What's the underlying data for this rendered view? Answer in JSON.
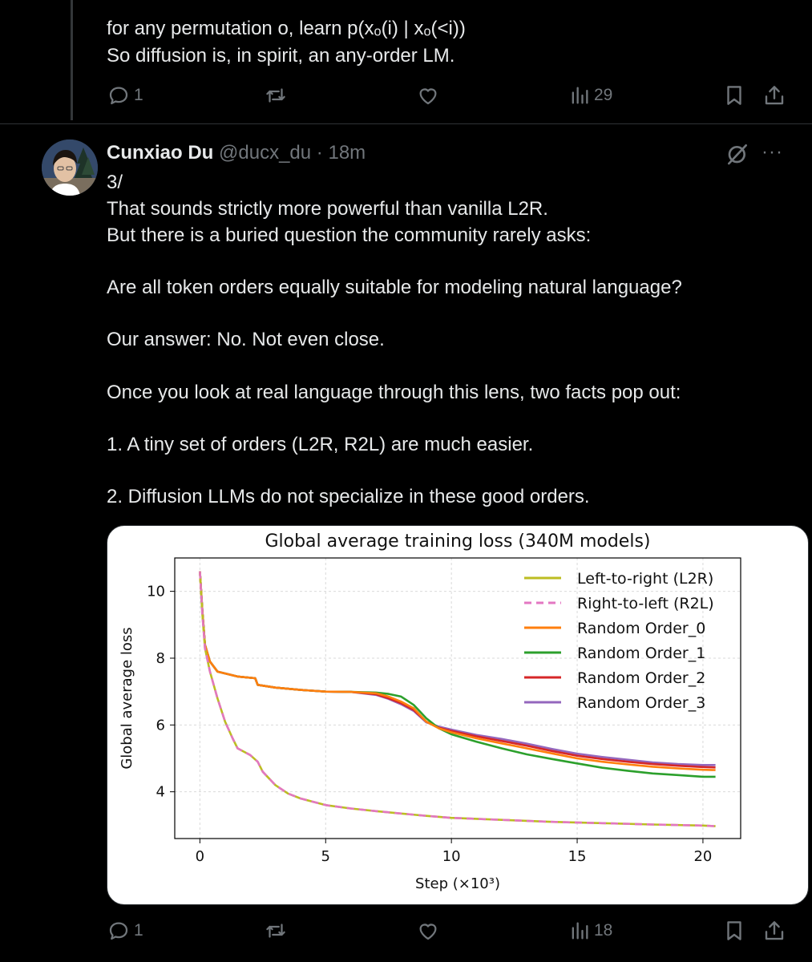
{
  "prev_tweet": {
    "lines": [
      "for any permutation o, learn p(xₒ(i) | xₒ(<i))",
      "So diffusion is, in spirit, an any-order LM."
    ],
    "actions": {
      "replies": "1",
      "views": "29"
    }
  },
  "tweet": {
    "author": {
      "name": "Cunxiao Du",
      "handle": "@ducx_du",
      "time": "18m"
    },
    "header_separator": "·",
    "more_label": "···",
    "lines": [
      "3/",
      "That sounds strictly more powerful than vanilla L2R.",
      "But there is a buried question the community rarely asks:",
      "Are all token orders equally suitable for modeling natural language?",
      "Our answer: No. Not even close.",
      "Once you look at real language through this lens, two facts pop out:",
      "1. A tiny set of orders (L2R, R2L) are much easier.",
      "2. Diffusion LLMs do not specialize in these good orders."
    ],
    "actions": {
      "replies": "1",
      "views": "18"
    }
  },
  "icons": {
    "reply": "reply-icon",
    "repost": "repost-icon",
    "like": "like-icon",
    "views": "views-icon",
    "bookmark": "bookmark-icon",
    "share": "share-icon",
    "grok": "grok-icon",
    "more": "more-icon"
  },
  "colors": {
    "background": "#000000",
    "text": "#e7e9ea",
    "muted": "#71767b",
    "divider": "#2f3336"
  },
  "chart_data": {
    "type": "line",
    "title": "Global average training loss (340M models)",
    "xlabel": "Step (×10³)",
    "ylabel": "Global average loss",
    "xlim": [
      -1,
      21.5
    ],
    "ylim": [
      2.6,
      11
    ],
    "xticks": [
      0,
      5,
      10,
      15,
      20
    ],
    "yticks": [
      4,
      6,
      8,
      10
    ],
    "grid": true,
    "legend": "top-right",
    "series": [
      {
        "name": "Left-to-right (L2R)",
        "color": "#bcbd22",
        "dash": false,
        "points": [
          [
            0,
            10.6
          ],
          [
            0.1,
            9.3
          ],
          [
            0.2,
            8.3
          ],
          [
            0.4,
            7.6
          ],
          [
            0.7,
            6.8
          ],
          [
            1,
            6.1
          ],
          [
            1.3,
            5.6
          ],
          [
            1.5,
            5.3
          ],
          [
            2,
            5.1
          ],
          [
            2.3,
            4.9
          ],
          [
            2.5,
            4.6
          ],
          [
            3,
            4.2
          ],
          [
            3.5,
            3.95
          ],
          [
            4,
            3.8
          ],
          [
            5,
            3.6
          ],
          [
            6,
            3.5
          ],
          [
            7,
            3.42
          ],
          [
            8,
            3.35
          ],
          [
            9,
            3.28
          ],
          [
            10,
            3.22
          ],
          [
            12,
            3.16
          ],
          [
            14,
            3.1
          ],
          [
            16,
            3.06
          ],
          [
            18,
            3.02
          ],
          [
            20,
            2.99
          ],
          [
            20.5,
            2.97
          ]
        ]
      },
      {
        "name": "Right-to-left (R2L)",
        "color": "#e377c2",
        "dash": true,
        "points": [
          [
            0,
            10.6
          ],
          [
            0.1,
            9.3
          ],
          [
            0.2,
            8.3
          ],
          [
            0.4,
            7.6
          ],
          [
            0.7,
            6.8
          ],
          [
            1,
            6.1
          ],
          [
            1.3,
            5.6
          ],
          [
            1.5,
            5.3
          ],
          [
            2,
            5.1
          ],
          [
            2.3,
            4.9
          ],
          [
            2.5,
            4.6
          ],
          [
            3,
            4.2
          ],
          [
            3.5,
            3.95
          ],
          [
            4,
            3.8
          ],
          [
            5,
            3.6
          ],
          [
            6,
            3.5
          ],
          [
            7,
            3.42
          ],
          [
            8,
            3.35
          ],
          [
            9,
            3.28
          ],
          [
            10,
            3.22
          ],
          [
            12,
            3.16
          ],
          [
            14,
            3.1
          ],
          [
            16,
            3.06
          ],
          [
            18,
            3.02
          ],
          [
            20,
            2.99
          ],
          [
            20.5,
            2.97
          ]
        ]
      },
      {
        "name": "Random Order_0",
        "color": "#ff7f0e",
        "dash": false,
        "points": [
          [
            0,
            10.6
          ],
          [
            0.1,
            9.4
          ],
          [
            0.2,
            8.4
          ],
          [
            0.4,
            7.9
          ],
          [
            0.7,
            7.6
          ],
          [
            1.5,
            7.45
          ],
          [
            2.2,
            7.4
          ],
          [
            2.3,
            7.2
          ],
          [
            3,
            7.12
          ],
          [
            4,
            7.05
          ],
          [
            5,
            7.0
          ],
          [
            6,
            6.99
          ],
          [
            7,
            6.95
          ],
          [
            7.5,
            6.85
          ],
          [
            8,
            6.7
          ],
          [
            8.5,
            6.5
          ],
          [
            9,
            6.1
          ],
          [
            9.5,
            5.9
          ],
          [
            10,
            5.78
          ],
          [
            11,
            5.6
          ],
          [
            12,
            5.45
          ],
          [
            13,
            5.3
          ],
          [
            14,
            5.15
          ],
          [
            15,
            5.0
          ],
          [
            16,
            4.9
          ],
          [
            17,
            4.82
          ],
          [
            18,
            4.75
          ],
          [
            19,
            4.7
          ],
          [
            20,
            4.66
          ],
          [
            20.5,
            4.65
          ]
        ]
      },
      {
        "name": "Random Order_1",
        "color": "#2ca02c",
        "dash": false,
        "points": [
          [
            0,
            10.6
          ],
          [
            0.1,
            9.4
          ],
          [
            0.2,
            8.4
          ],
          [
            0.4,
            7.9
          ],
          [
            0.7,
            7.6
          ],
          [
            1.5,
            7.45
          ],
          [
            2.2,
            7.4
          ],
          [
            2.3,
            7.2
          ],
          [
            3,
            7.12
          ],
          [
            4,
            7.05
          ],
          [
            5,
            7.0
          ],
          [
            6,
            6.99
          ],
          [
            7,
            6.97
          ],
          [
            7.5,
            6.93
          ],
          [
            8,
            6.85
          ],
          [
            8.5,
            6.6
          ],
          [
            9,
            6.2
          ],
          [
            9.5,
            5.9
          ],
          [
            10,
            5.72
          ],
          [
            11,
            5.5
          ],
          [
            12,
            5.3
          ],
          [
            13,
            5.12
          ],
          [
            14,
            4.98
          ],
          [
            15,
            4.85
          ],
          [
            16,
            4.72
          ],
          [
            17,
            4.63
          ],
          [
            18,
            4.55
          ],
          [
            19,
            4.5
          ],
          [
            20,
            4.45
          ],
          [
            20.5,
            4.45
          ]
        ]
      },
      {
        "name": "Random Order_2",
        "color": "#d62728",
        "dash": false,
        "points": [
          [
            0,
            10.6
          ],
          [
            0.1,
            9.4
          ],
          [
            0.2,
            8.4
          ],
          [
            0.4,
            7.9
          ],
          [
            0.7,
            7.6
          ],
          [
            1.5,
            7.45
          ],
          [
            2.2,
            7.4
          ],
          [
            2.3,
            7.2
          ],
          [
            3,
            7.12
          ],
          [
            4,
            7.05
          ],
          [
            5,
            7.0
          ],
          [
            6,
            6.99
          ],
          [
            7,
            6.92
          ],
          [
            7.5,
            6.8
          ],
          [
            8,
            6.65
          ],
          [
            8.5,
            6.45
          ],
          [
            9,
            6.1
          ],
          [
            9.5,
            5.92
          ],
          [
            10,
            5.82
          ],
          [
            11,
            5.66
          ],
          [
            12,
            5.52
          ],
          [
            13,
            5.38
          ],
          [
            14,
            5.22
          ],
          [
            15,
            5.08
          ],
          [
            16,
            4.98
          ],
          [
            17,
            4.9
          ],
          [
            18,
            4.83
          ],
          [
            19,
            4.78
          ],
          [
            20,
            4.74
          ],
          [
            20.5,
            4.73
          ]
        ]
      },
      {
        "name": "Random Order_3",
        "color": "#9467bd",
        "dash": false,
        "points": [
          [
            0,
            10.6
          ],
          [
            0.1,
            9.4
          ],
          [
            0.2,
            8.4
          ],
          [
            0.4,
            7.9
          ],
          [
            0.7,
            7.6
          ],
          [
            1.5,
            7.45
          ],
          [
            2.2,
            7.4
          ],
          [
            2.3,
            7.2
          ],
          [
            3,
            7.12
          ],
          [
            4,
            7.05
          ],
          [
            5,
            7.0
          ],
          [
            6,
            6.99
          ],
          [
            7,
            6.9
          ],
          [
            7.5,
            6.78
          ],
          [
            8,
            6.62
          ],
          [
            8.5,
            6.42
          ],
          [
            9,
            6.08
          ],
          [
            9.5,
            5.95
          ],
          [
            10,
            5.86
          ],
          [
            11,
            5.7
          ],
          [
            12,
            5.58
          ],
          [
            13,
            5.44
          ],
          [
            14,
            5.28
          ],
          [
            15,
            5.14
          ],
          [
            16,
            5.04
          ],
          [
            17,
            4.96
          ],
          [
            18,
            4.88
          ],
          [
            19,
            4.83
          ],
          [
            20,
            4.8
          ],
          [
            20.5,
            4.8
          ]
        ]
      }
    ]
  }
}
